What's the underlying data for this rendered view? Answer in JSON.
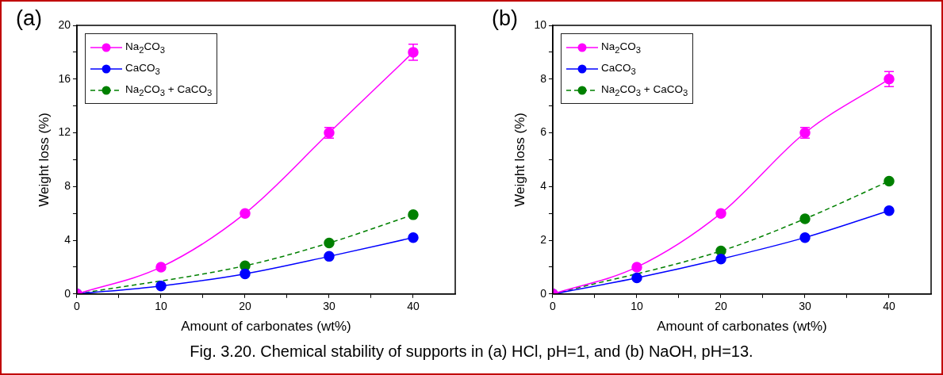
{
  "chart_data": [
    {
      "type": "line",
      "xlabel": "Amount of carbonates (wt%)",
      "ylabel": "Weight loss (%)",
      "x": [
        0,
        10,
        20,
        30,
        40
      ],
      "xlim": [
        0,
        45
      ],
      "xticks": [
        0,
        {
          "value": 5,
          "label": null
        },
        10,
        {
          "value": 15,
          "label": null
        },
        20,
        {
          "value": 25,
          "label": null
        },
        30,
        {
          "value": 35,
          "label": null
        },
        40
      ],
      "ylim": [
        0,
        20
      ],
      "yticks": [
        0,
        {
          "value": 2,
          "label": null
        },
        4,
        {
          "value": 6,
          "label": null
        },
        8,
        {
          "value": 10,
          "label": null
        },
        12,
        {
          "value": 14,
          "label": null
        },
        16,
        {
          "value": 18,
          "label": null
        },
        20
      ],
      "grid": false,
      "legend": "top left",
      "marker": "circle",
      "annotations": [
        "(a)",
        "Fig. 3.20. Chemical stability of supports in (a) HCl, pH=1, and (b) NaOH, pH=13."
      ],
      "series": [
        {
          "name": "Na$_{2}$CO$_{3}$",
          "color": "#ff00ff",
          "line_style": "solid",
          "values": [
            0,
            2,
            6,
            12,
            18
          ],
          "errors": [
            null,
            null,
            null,
            0.4,
            0.6
          ]
        },
        {
          "name": "CaCO$_{3}$",
          "color": "#0000ff",
          "line_style": "solid",
          "values": [
            0,
            0.6,
            1.5,
            2.8,
            4.2
          ]
        },
        {
          "name": "Na$_{2}$CO$_{3}$ + CaCO$_{3}$",
          "color": "#008000",
          "line_style": "dashed",
          "values": [
            0,
            null,
            2.1,
            3.8,
            5.9
          ]
        }
      ]
    },
    {
      "type": "line",
      "xlabel": "Amount of carbonates (wt%)",
      "ylabel": "Weight loss (%)",
      "x": [
        0,
        10,
        20,
        30,
        40
      ],
      "xlim": [
        0,
        45
      ],
      "xticks": [
        0,
        {
          "value": 5,
          "label": null
        },
        10,
        {
          "value": 15,
          "label": null
        },
        20,
        {
          "value": 25,
          "label": null
        },
        30,
        {
          "value": 35,
          "label": null
        },
        40
      ],
      "ylim": [
        0,
        10
      ],
      "yticks": [
        0,
        {
          "value": 1,
          "label": null
        },
        2,
        {
          "value": 3,
          "label": null
        },
        4,
        {
          "value": 5,
          "label": null
        },
        6,
        {
          "value": 7,
          "label": null
        },
        8,
        {
          "value": 9,
          "label": null
        },
        10
      ],
      "grid": false,
      "legend": "top left",
      "marker": "circle",
      "annotations": [
        "(b)"
      ],
      "series": [
        {
          "name": "Na$_{2}$CO$_{3}$",
          "color": "#ff00ff",
          "line_style": "solid",
          "values": [
            0,
            1,
            3,
            6,
            8
          ],
          "errors": [
            null,
            null,
            null,
            0.2,
            0.28
          ]
        },
        {
          "name": "CaCO$_{3}$",
          "color": "#0000ff",
          "line_style": "solid",
          "values": [
            0,
            0.6,
            1.3,
            2.1,
            3.1
          ]
        },
        {
          "name": "Na$_{2}$CO$_{3}$ + CaCO$_{3}$",
          "color": "#008000",
          "line_style": "dashed",
          "values": [
            0,
            null,
            1.6,
            2.8,
            4.2
          ]
        }
      ]
    }
  ]
}
